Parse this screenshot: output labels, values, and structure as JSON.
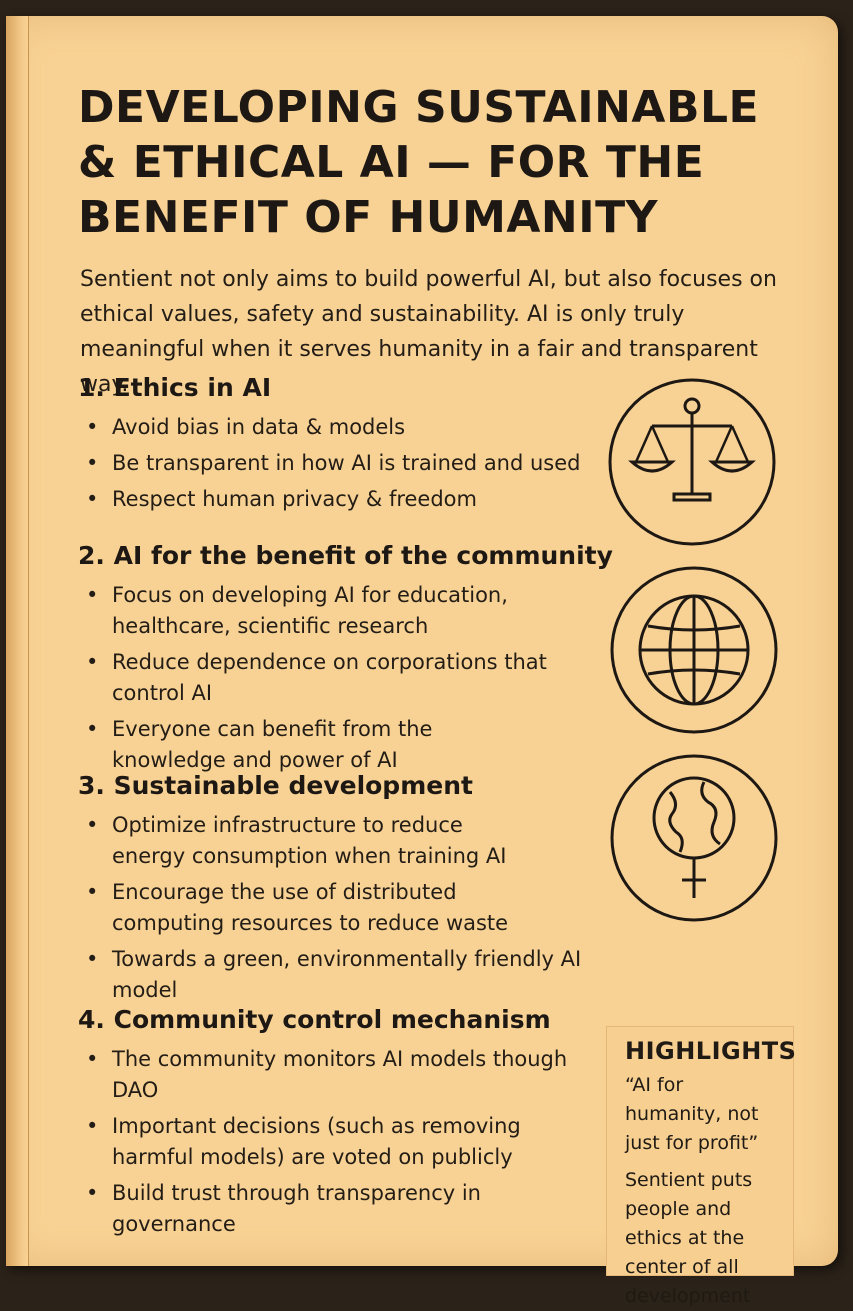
{
  "title": "DEVELOPING SUSTAINABLE & ETHICAL AI — FOR THE BENEFIT OF HUMANITY",
  "intro": "Sentient not only aims to build powerful AI, but also focuses on ethical values, safety and sustainability. AI is only truly meaningful when it serves humanity in a fair and transparent way.",
  "sections": [
    {
      "heading": "1. Ethics in AI",
      "items": [
        "Avoid bias in data & models",
        "Be transparent in how AI is trained and used",
        "Respect human privacy & freedom"
      ],
      "icon": "scales-icon"
    },
    {
      "heading": "2. AI for the benefit of the community",
      "items": [
        "Focus on developing AI for education, healthcare, scientific research",
        "Reduce dependence on corporations that control AI",
        "Everyone can benefit from the knowledge and power of AI"
      ],
      "icon": "globe-icon"
    },
    {
      "heading": "3. Sustainable development",
      "items": [
        "Optimize infrastructure to reduce energy consumption when training AI",
        "Encourage the use of distributed computing resources to reduce waste",
        "Towards a green, environmentally friendly AI model"
      ],
      "icon": "earth-symbol-icon"
    },
    {
      "heading": "4. Community control mechanism",
      "items": [
        "The community monitors AI models though DAO",
        "Important decisions (such as removing harmful models) are voted on publicly",
        "Build trust through transparency in governance"
      ]
    }
  ],
  "highlights": {
    "heading": "HIGHLIGHTS",
    "quote": "“AI for humanity, not just for profit”",
    "text": "Sentient puts people and ethics at the center of all development"
  },
  "colors": {
    "paper": "#f8d294",
    "ink": "#1d1813",
    "background": "#2b2219"
  }
}
